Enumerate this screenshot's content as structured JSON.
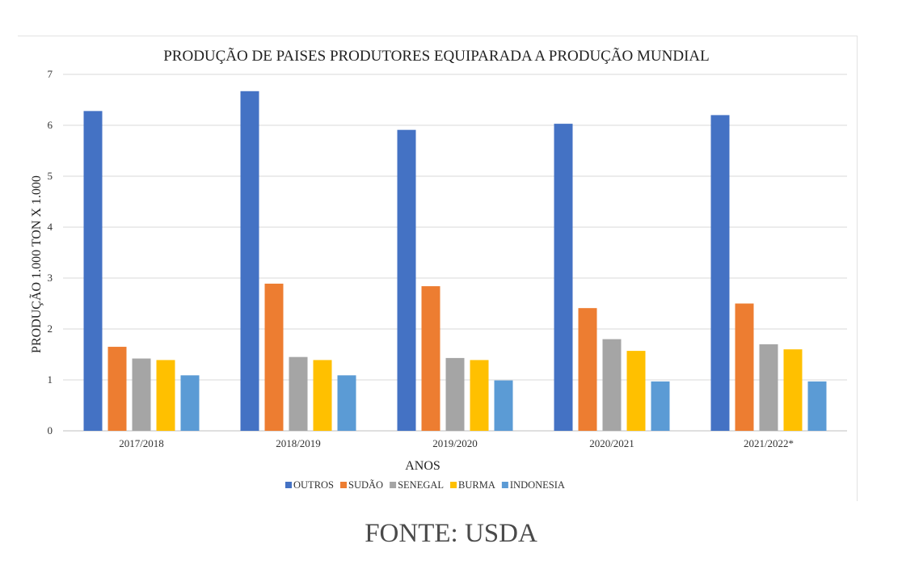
{
  "chart_data": {
    "type": "bar",
    "title": "PRODUÇÃO DE PAISES PRODUTORES EQUIPARADA A PRODUÇÃO MUNDIAL",
    "xlabel": "ANOS",
    "ylabel": "PRODUÇÃO 1.000 TON X 1.000",
    "ylim": [
      0,
      7
    ],
    "yticks": [
      "0",
      "1",
      "2",
      "3",
      "4",
      "5",
      "6",
      "7"
    ],
    "grid": true,
    "legend_position": "bottom",
    "categories": [
      "2017/2018",
      "2018/2019",
      "2019/2020",
      "2020/2021",
      "2021/2022*"
    ],
    "series": [
      {
        "name": "OUTROS",
        "color": "#4472C4",
        "values": [
          6.28,
          6.67,
          5.91,
          6.03,
          6.2
        ]
      },
      {
        "name": "SUDÃO",
        "color": "#ED7D31",
        "values": [
          1.65,
          2.89,
          2.84,
          2.41,
          2.5
        ]
      },
      {
        "name": "SENEGAL",
        "color": "#A5A5A5",
        "values": [
          1.42,
          1.45,
          1.43,
          1.8,
          1.7
        ]
      },
      {
        "name": "BURMA",
        "color": "#FFC000",
        "values": [
          1.39,
          1.39,
          1.39,
          1.57,
          1.6
        ]
      },
      {
        "name": "INDONESIA",
        "color": "#5B9BD5",
        "values": [
          1.09,
          1.09,
          0.99,
          0.97,
          0.97
        ]
      }
    ]
  },
  "caption": "FONTE: USDA"
}
